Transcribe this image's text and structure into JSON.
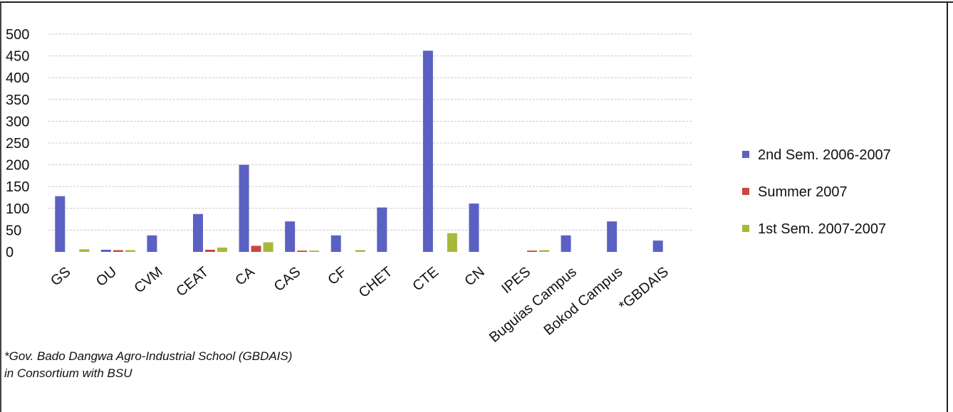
{
  "chart_data": {
    "type": "bar",
    "categories": [
      "GS",
      "OU",
      "CVM",
      "CEAT",
      "CA",
      "CAS",
      "CF",
      "CHET",
      "CTE",
      "CN",
      "IPES",
      "Buguias Campus",
      "Bokod Campus",
      "*GBDAIS"
    ],
    "series": [
      {
        "name": "2nd Sem. 2006-2007",
        "color": "#5b61c3",
        "values": [
          128,
          5,
          38,
          87,
          200,
          70,
          38,
          102,
          462,
          111,
          0,
          38,
          70,
          26
        ]
      },
      {
        "name": "Summer 2007",
        "color": "#c9483e",
        "values": [
          0,
          4,
          0,
          5,
          14,
          3,
          0,
          0,
          0,
          0,
          3,
          0,
          0,
          0
        ]
      },
      {
        "name": "1st Sem. 2007-2007",
        "color": "#a8b83a",
        "values": [
          6,
          4,
          0,
          10,
          22,
          3,
          4,
          0,
          43,
          0,
          4,
          0,
          0,
          0
        ]
      }
    ],
    "ylim": [
      0,
      500
    ],
    "yticks": [
      "0",
      "50",
      "100",
      "150",
      "200",
      "250",
      "300",
      "350",
      "400",
      "450",
      "500"
    ],
    "grid": true,
    "legend": "right",
    "title": "",
    "xlabel": "",
    "ylabel": ""
  },
  "footnote": {
    "line1": "*Gov. Bado Dangwa Agro-Industrial School (GBDAIS)",
    "line2": "in Consortium with  BSU"
  }
}
